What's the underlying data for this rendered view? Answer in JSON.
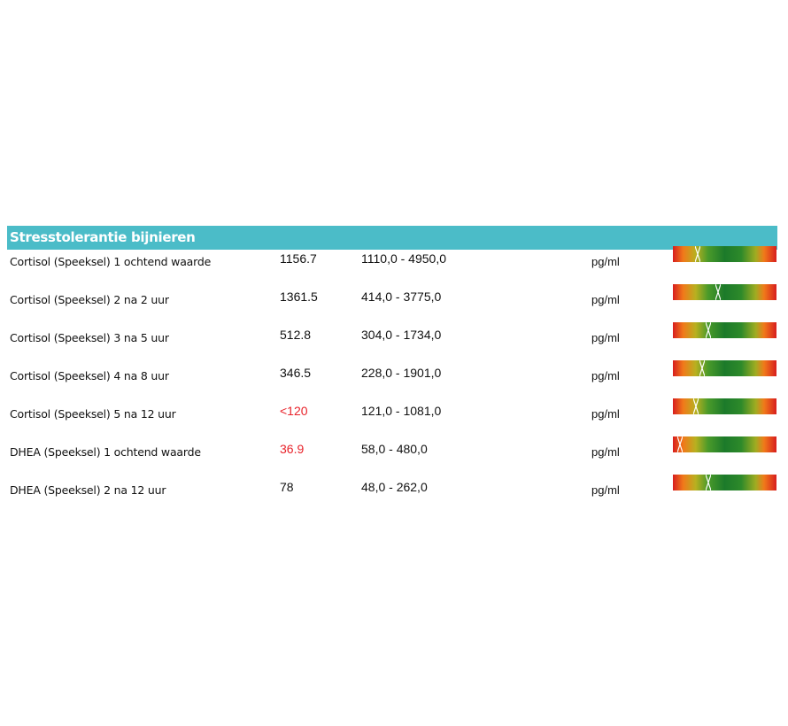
{
  "header": {
    "title": "Stresstolerantie bijnieren"
  },
  "table": {
    "rows": [
      [
        "Cortisol (Speeksel) 1 ochtend waarde",
        "1156.7",
        "1110,0 - 4950,0",
        "pg/ml"
      ],
      [
        "Cortisol (Speeksel) 2 na 2 uur",
        "1361.5",
        "414,0 - 3775,0",
        "pg/ml"
      ],
      [
        "Cortisol (Speeksel) 3 na 5 uur",
        "512.8",
        "304,0 - 1734,0",
        "pg/ml"
      ],
      [
        "Cortisol (Speeksel) 4 na 8 uur",
        "346.5",
        "228,0 - 1901,0",
        "pg/ml"
      ],
      [
        "Cortisol (Speeksel) 5 na 12 uur",
        "<120",
        "121,0 - 1081,0",
        "pg/ml"
      ],
      [
        "DHEA (Speeksel)  1 ochtend waarde",
        "36.9",
        "58,0 - 480,0",
        "pg/ml"
      ],
      [
        "DHEA (Speeksel) 2 na 12 uur",
        "78",
        "48,0 - 262,0",
        "pg/ml"
      ]
    ]
  }
}
